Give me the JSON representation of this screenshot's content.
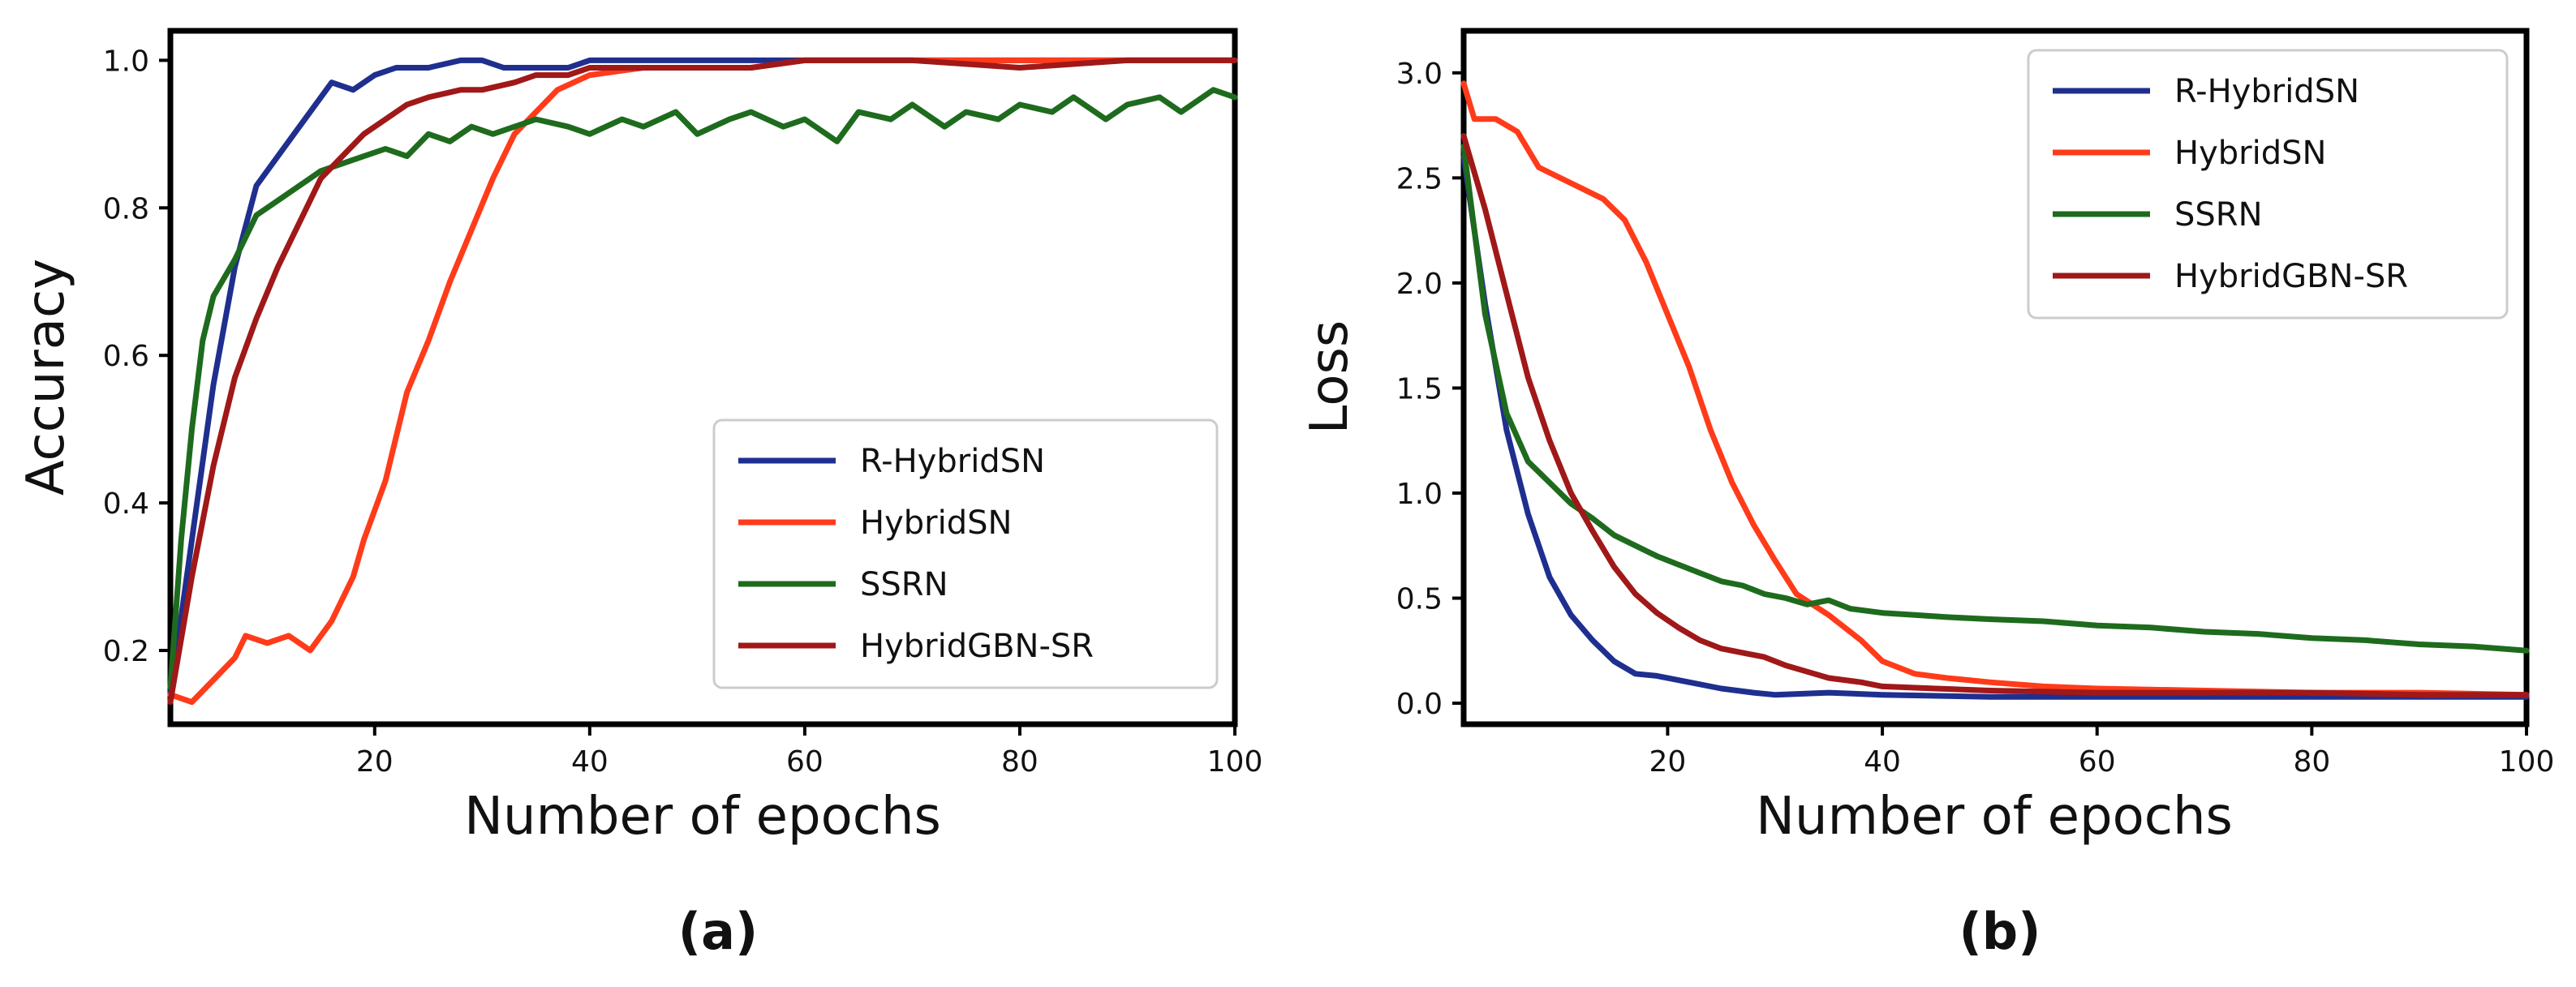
{
  "chart_data": [
    {
      "type": "line",
      "caption": "(a)",
      "xlabel": "Number of epochs",
      "ylabel": "Accuracy",
      "xlim": [
        1,
        100
      ],
      "ylim": [
        0.1,
        1.04
      ],
      "xticks": [
        20,
        40,
        60,
        80,
        100
      ],
      "xtick_labels": [
        "20",
        "40",
        "60",
        "80",
        "100"
      ],
      "yticks": [
        0.2,
        0.4,
        0.6,
        0.8,
        1.0
      ],
      "ytick_labels": [
        "0.2",
        "0.4",
        "0.6",
        "0.8",
        "1.0"
      ],
      "legend_position": "lower-right",
      "series": [
        {
          "name": "R-HybridSN",
          "color": "#1f2f8f",
          "x": [
            1,
            3,
            5,
            7,
            9,
            11,
            13,
            15,
            16,
            18,
            20,
            22,
            25,
            28,
            30,
            32,
            35,
            38,
            40,
            45,
            50,
            55,
            60,
            70,
            80,
            90,
            100
          ],
          "y": [
            0.14,
            0.35,
            0.56,
            0.72,
            0.83,
            0.87,
            0.91,
            0.95,
            0.97,
            0.96,
            0.98,
            0.99,
            0.99,
            1.0,
            1.0,
            0.99,
            0.99,
            0.99,
            1.0,
            1.0,
            1.0,
            1.0,
            1.0,
            1.0,
            1.0,
            1.0,
            1.0
          ]
        },
        {
          "name": "HybridSN",
          "color": "#ff3b1a",
          "x": [
            1,
            3,
            5,
            7,
            8,
            10,
            12,
            14,
            16,
            18,
            19,
            21,
            23,
            25,
            27,
            29,
            31,
            33,
            35,
            37,
            40,
            45,
            50,
            55,
            60,
            70,
            80,
            90,
            100
          ],
          "y": [
            0.14,
            0.13,
            0.16,
            0.19,
            0.22,
            0.21,
            0.22,
            0.2,
            0.24,
            0.3,
            0.35,
            0.43,
            0.55,
            0.62,
            0.7,
            0.77,
            0.84,
            0.9,
            0.93,
            0.96,
            0.98,
            0.99,
            0.99,
            0.99,
            1.0,
            1.0,
            1.0,
            1.0,
            1.0
          ]
        },
        {
          "name": "SSRN",
          "color": "#1e6b1e",
          "x": [
            1,
            2,
            3,
            4,
            5,
            7,
            9,
            11,
            13,
            15,
            17,
            19,
            21,
            23,
            25,
            27,
            29,
            31,
            33,
            35,
            38,
            40,
            43,
            45,
            48,
            50,
            53,
            55,
            58,
            60,
            63,
            65,
            68,
            70,
            73,
            75,
            78,
            80,
            83,
            85,
            88,
            90,
            93,
            95,
            98,
            100
          ],
          "y": [
            0.15,
            0.35,
            0.5,
            0.62,
            0.68,
            0.73,
            0.79,
            0.81,
            0.83,
            0.85,
            0.86,
            0.87,
            0.88,
            0.87,
            0.9,
            0.89,
            0.91,
            0.9,
            0.91,
            0.92,
            0.91,
            0.9,
            0.92,
            0.91,
            0.93,
            0.9,
            0.92,
            0.93,
            0.91,
            0.92,
            0.89,
            0.93,
            0.92,
            0.94,
            0.91,
            0.93,
            0.92,
            0.94,
            0.93,
            0.95,
            0.92,
            0.94,
            0.95,
            0.93,
            0.96,
            0.95
          ]
        },
        {
          "name": "HybridGBN-SR",
          "color": "#a01818",
          "x": [
            1,
            3,
            5,
            7,
            9,
            11,
            13,
            15,
            17,
            19,
            21,
            23,
            25,
            28,
            30,
            33,
            35,
            38,
            40,
            45,
            50,
            55,
            60,
            70,
            80,
            90,
            100
          ],
          "y": [
            0.13,
            0.3,
            0.45,
            0.57,
            0.65,
            0.72,
            0.78,
            0.84,
            0.87,
            0.9,
            0.92,
            0.94,
            0.95,
            0.96,
            0.96,
            0.97,
            0.98,
            0.98,
            0.99,
            0.99,
            0.99,
            0.99,
            1.0,
            1.0,
            0.99,
            1.0,
            1.0
          ]
        }
      ]
    },
    {
      "type": "line",
      "caption": "(b)",
      "xlabel": "Number of epochs",
      "ylabel": "Loss",
      "xlim": [
        1,
        100
      ],
      "ylim": [
        -0.1,
        3.2
      ],
      "xticks": [
        20,
        40,
        60,
        80,
        100
      ],
      "xtick_labels": [
        "20",
        "40",
        "60",
        "80",
        "100"
      ],
      "yticks": [
        0.0,
        0.5,
        1.0,
        1.5,
        2.0,
        2.5,
        3.0
      ],
      "ytick_labels": [
        "0.0",
        "0.5",
        "1.0",
        "1.5",
        "2.0",
        "2.5",
        "3.0"
      ],
      "legend_position": "upper-right",
      "series": [
        {
          "name": "R-HybridSN",
          "color": "#1f2f8f",
          "x": [
            1,
            3,
            5,
            7,
            9,
            11,
            13,
            15,
            17,
            19,
            22,
            25,
            28,
            30,
            35,
            40,
            50,
            60,
            80,
            100
          ],
          "y": [
            2.6,
            1.9,
            1.3,
            0.9,
            0.6,
            0.42,
            0.3,
            0.2,
            0.14,
            0.13,
            0.1,
            0.07,
            0.05,
            0.04,
            0.05,
            0.04,
            0.03,
            0.03,
            0.03,
            0.03
          ]
        },
        {
          "name": "HybridSN",
          "color": "#ff3b1a",
          "x": [
            1,
            2,
            4,
            6,
            8,
            10,
            12,
            14,
            16,
            18,
            20,
            22,
            24,
            26,
            28,
            30,
            32,
            35,
            38,
            40,
            43,
            46,
            50,
            55,
            60,
            70,
            80,
            90,
            100
          ],
          "y": [
            2.95,
            2.78,
            2.78,
            2.72,
            2.55,
            2.5,
            2.45,
            2.4,
            2.3,
            2.1,
            1.85,
            1.6,
            1.3,
            1.05,
            0.85,
            0.68,
            0.52,
            0.42,
            0.3,
            0.2,
            0.14,
            0.12,
            0.1,
            0.08,
            0.07,
            0.06,
            0.05,
            0.05,
            0.04
          ]
        },
        {
          "name": "SSRN",
          "color": "#1e6b1e",
          "x": [
            1,
            3,
            5,
            7,
            9,
            11,
            13,
            15,
            17,
            19,
            21,
            23,
            25,
            27,
            29,
            31,
            33,
            35,
            37,
            40,
            43,
            46,
            50,
            55,
            60,
            65,
            70,
            75,
            80,
            85,
            90,
            95,
            100
          ],
          "y": [
            2.65,
            1.85,
            1.38,
            1.15,
            1.05,
            0.95,
            0.88,
            0.8,
            0.75,
            0.7,
            0.66,
            0.62,
            0.58,
            0.56,
            0.52,
            0.5,
            0.47,
            0.49,
            0.45,
            0.43,
            0.42,
            0.41,
            0.4,
            0.39,
            0.37,
            0.36,
            0.34,
            0.33,
            0.31,
            0.3,
            0.28,
            0.27,
            0.25
          ]
        },
        {
          "name": "HybridGBN-SR",
          "color": "#a01818",
          "x": [
            1,
            3,
            5,
            7,
            9,
            11,
            13,
            15,
            17,
            19,
            21,
            23,
            25,
            27,
            29,
            31,
            33,
            35,
            38,
            40,
            45,
            50,
            60,
            70,
            80,
            90,
            100
          ],
          "y": [
            2.7,
            2.35,
            1.95,
            1.55,
            1.25,
            1.0,
            0.82,
            0.65,
            0.52,
            0.43,
            0.36,
            0.3,
            0.26,
            0.24,
            0.22,
            0.18,
            0.15,
            0.12,
            0.1,
            0.08,
            0.07,
            0.06,
            0.05,
            0.05,
            0.05,
            0.04,
            0.04
          ]
        }
      ]
    }
  ]
}
